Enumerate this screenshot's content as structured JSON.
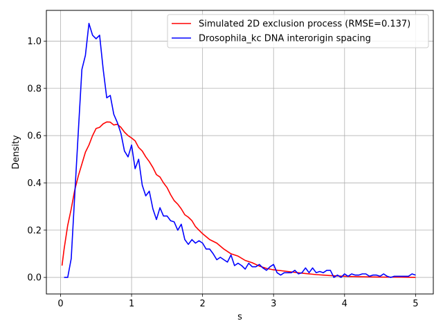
{
  "chart_data": {
    "type": "line",
    "title": "",
    "xlabel": "s",
    "ylabel": "Density",
    "xlim": [
      -0.2,
      5.25
    ],
    "ylim": [
      -0.07,
      1.13
    ],
    "xticks": [
      0,
      1,
      2,
      3,
      4,
      5
    ],
    "yticks": [
      0.0,
      0.2,
      0.4,
      0.6,
      0.8,
      1.0
    ],
    "xtick_labels": [
      "0",
      "1",
      "2",
      "3",
      "4",
      "5"
    ],
    "ytick_labels": [
      "0.0",
      "0.2",
      "0.4",
      "0.6",
      "0.8",
      "1.0"
    ],
    "grid": true,
    "legend_position": "top-right",
    "series": [
      {
        "name": "Simulated 2D exclusion process (RMSE=0.137)",
        "color": "#ff0000",
        "x": [
          0.02,
          0.05,
          0.1,
          0.15,
          0.2,
          0.25,
          0.3,
          0.35,
          0.4,
          0.45,
          0.5,
          0.55,
          0.6,
          0.65,
          0.7,
          0.75,
          0.8,
          0.85,
          0.9,
          0.95,
          1.0,
          1.05,
          1.1,
          1.15,
          1.2,
          1.25,
          1.3,
          1.35,
          1.4,
          1.45,
          1.5,
          1.55,
          1.6,
          1.65,
          1.7,
          1.75,
          1.8,
          1.85,
          1.9,
          1.95,
          2.0,
          2.1,
          2.2,
          2.3,
          2.4,
          2.5,
          2.6,
          2.7,
          2.8,
          2.9,
          3.0,
          3.2,
          3.4,
          3.6,
          3.8,
          4.0,
          4.2,
          4.4,
          4.6,
          4.8,
          5.0
        ],
        "y": [
          0.05,
          0.12,
          0.22,
          0.29,
          0.37,
          0.43,
          0.48,
          0.53,
          0.56,
          0.6,
          0.63,
          0.635,
          0.65,
          0.658,
          0.657,
          0.645,
          0.648,
          0.635,
          0.615,
          0.6,
          0.59,
          0.578,
          0.55,
          0.535,
          0.51,
          0.49,
          0.465,
          0.435,
          0.425,
          0.4,
          0.38,
          0.35,
          0.325,
          0.31,
          0.29,
          0.265,
          0.255,
          0.24,
          0.215,
          0.2,
          0.185,
          0.16,
          0.145,
          0.12,
          0.1,
          0.09,
          0.072,
          0.062,
          0.048,
          0.038,
          0.032,
          0.025,
          0.018,
          0.012,
          0.008,
          0.005,
          0.003,
          0.002,
          0.001,
          0.001,
          0.0
        ]
      },
      {
        "name": "Drosophila_kc DNA interorigin spacing",
        "color": "#0000ff",
        "x": [
          0.05,
          0.1,
          0.15,
          0.2,
          0.25,
          0.3,
          0.35,
          0.4,
          0.45,
          0.5,
          0.55,
          0.6,
          0.65,
          0.7,
          0.75,
          0.8,
          0.85,
          0.9,
          0.95,
          1.0,
          1.05,
          1.1,
          1.15,
          1.2,
          1.25,
          1.3,
          1.35,
          1.4,
          1.45,
          1.5,
          1.55,
          1.6,
          1.65,
          1.7,
          1.75,
          1.8,
          1.85,
          1.9,
          1.95,
          2.0,
          2.05,
          2.1,
          2.15,
          2.2,
          2.25,
          2.3,
          2.35,
          2.4,
          2.45,
          2.5,
          2.55,
          2.6,
          2.65,
          2.7,
          2.75,
          2.8,
          2.85,
          2.9,
          2.95,
          3.0,
          3.05,
          3.1,
          3.15,
          3.2,
          3.25,
          3.3,
          3.35,
          3.4,
          3.45,
          3.5,
          3.55,
          3.6,
          3.65,
          3.7,
          3.75,
          3.8,
          3.85,
          3.9,
          3.95,
          4.0,
          4.05,
          4.1,
          4.15,
          4.2,
          4.25,
          4.3,
          4.35,
          4.4,
          4.45,
          4.5,
          4.55,
          4.6,
          4.65,
          4.7,
          4.75,
          4.8,
          4.85,
          4.9,
          4.95,
          5.0
        ],
        "y": [
          0.0,
          0.0,
          0.08,
          0.35,
          0.62,
          0.88,
          0.94,
          1.075,
          1.025,
          1.01,
          1.025,
          0.88,
          0.76,
          0.77,
          0.69,
          0.655,
          0.61,
          0.535,
          0.51,
          0.56,
          0.46,
          0.5,
          0.39,
          0.345,
          0.365,
          0.29,
          0.245,
          0.295,
          0.26,
          0.26,
          0.24,
          0.235,
          0.2,
          0.225,
          0.16,
          0.14,
          0.16,
          0.145,
          0.155,
          0.145,
          0.12,
          0.12,
          0.1,
          0.075,
          0.085,
          0.075,
          0.065,
          0.095,
          0.05,
          0.06,
          0.05,
          0.035,
          0.06,
          0.045,
          0.045,
          0.055,
          0.04,
          0.03,
          0.045,
          0.055,
          0.02,
          0.01,
          0.02,
          0.02,
          0.02,
          0.03,
          0.015,
          0.02,
          0.04,
          0.02,
          0.04,
          0.02,
          0.025,
          0.02,
          0.03,
          0.03,
          0.0,
          0.01,
          0.0,
          0.015,
          0.005,
          0.015,
          0.01,
          0.01,
          0.015,
          0.015,
          0.005,
          0.01,
          0.01,
          0.005,
          0.015,
          0.005,
          0.0,
          0.005,
          0.005,
          0.005,
          0.005,
          0.005,
          0.015,
          0.01
        ]
      }
    ]
  }
}
